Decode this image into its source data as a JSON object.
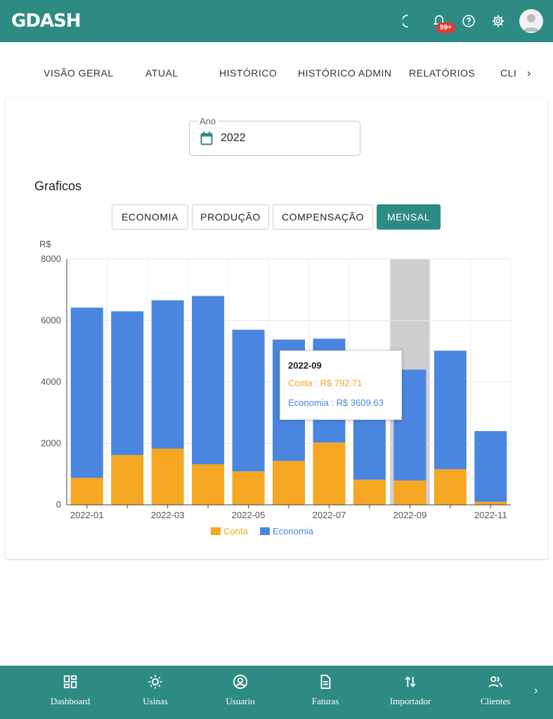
{
  "app": {
    "logo": "GDASH"
  },
  "header": {
    "notification_badge": "99+"
  },
  "tabs": [
    {
      "label": "VISÃO GERAL"
    },
    {
      "label": "ATUAL"
    },
    {
      "label": "HISTÓRICO"
    },
    {
      "label": "HISTÓRICO ADMIN"
    },
    {
      "label": "RELATÓRIOS"
    },
    {
      "label": "CLI"
    }
  ],
  "year_picker": {
    "label": "Ano",
    "value": "2022"
  },
  "section": {
    "title": "Graficos"
  },
  "chart_buttons": [
    {
      "label": "ECONOMIA",
      "active": false
    },
    {
      "label": "PRODUÇÃO",
      "active": false
    },
    {
      "label": "COMPENSAÇÃO",
      "active": false
    },
    {
      "label": "MENSAL",
      "active": true
    }
  ],
  "tooltip": {
    "title": "2022-09",
    "conta": "Conta : R$ 792.71",
    "economia": "Economia : R$ 3609.63"
  },
  "colors": {
    "accent": "#2e8b84",
    "conta": "#f5a623",
    "economia": "#4a86e0",
    "highlight": "#cfcfcf"
  },
  "chart_data": {
    "type": "bar",
    "stacked": true,
    "ylabel": "R$",
    "ylim": [
      0,
      8000
    ],
    "yticks": [
      "0",
      "2000",
      "4000",
      "6000",
      "8000"
    ],
    "categories": [
      "2022-01",
      "2022-02",
      "2022-03",
      "2022-04",
      "2022-05",
      "2022-06",
      "2022-07",
      "2022-08",
      "2022-09",
      "2022-10",
      "2022-11"
    ],
    "xtick_labels": [
      "2022-01",
      "",
      "2022-03",
      "",
      "2022-05",
      "",
      "2022-07",
      "",
      "2022-09",
      "",
      "2022-11"
    ],
    "highlighted_category": "2022-09",
    "series": [
      {
        "name": "Conta",
        "color": "#f5a623",
        "values": [
          880,
          1620,
          1830,
          1320,
          1090,
          1430,
          2030,
          820,
          792.71,
          1160,
          100
        ]
      },
      {
        "name": "Economia",
        "color": "#4a86e0",
        "values": [
          5540,
          4680,
          4830,
          5480,
          4610,
          3950,
          3380,
          3840,
          3609.63,
          3860,
          2300
        ]
      }
    ],
    "legend": "bottom",
    "grid": true
  },
  "bottom_nav": [
    {
      "label": "Dashboard",
      "icon": "grid-icon"
    },
    {
      "label": "Usinas",
      "icon": "sun-icon"
    },
    {
      "label": "Usuario",
      "icon": "user-circle-icon"
    },
    {
      "label": "Faturas",
      "icon": "document-icon"
    },
    {
      "label": "Importador",
      "icon": "swap-vertical-icon"
    },
    {
      "label": "Clientes",
      "icon": "people-icon"
    }
  ]
}
